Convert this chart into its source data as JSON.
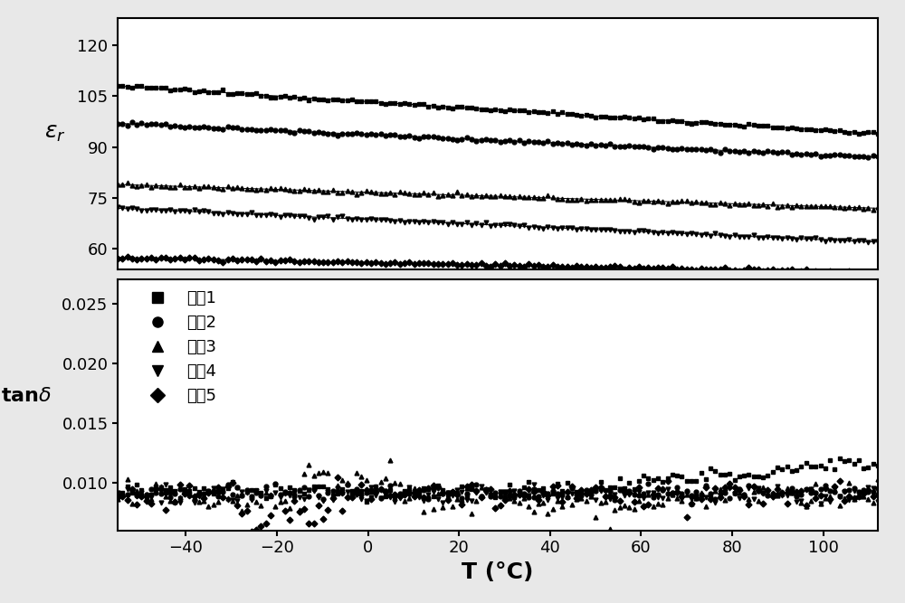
{
  "xlabel": "T (°C)",
  "ylabel_top": "ε_r",
  "ylabel_bottom": "tanδ",
  "x_min": -55,
  "x_max": 112,
  "x_ticks": [
    -40,
    -20,
    0,
    20,
    40,
    60,
    80,
    100
  ],
  "eps_ylim": [
    54,
    128
  ],
  "eps_yticks": [
    60,
    75,
    90,
    105,
    120
  ],
  "tand_ylim": [
    0.006,
    0.027
  ],
  "tand_yticks": [
    0.01,
    0.015,
    0.02,
    0.025
  ],
  "labels": [
    "实施1",
    "实施2",
    "实施3",
    "实施4",
    "实施5"
  ],
  "markers": [
    "s",
    "o",
    "^",
    "v",
    "D"
  ],
  "eps_starts": [
    108,
    97,
    79,
    72,
    57.5
  ],
  "eps_ends": [
    94,
    87,
    72,
    62,
    53
  ],
  "background_color": "#e8e8e8"
}
